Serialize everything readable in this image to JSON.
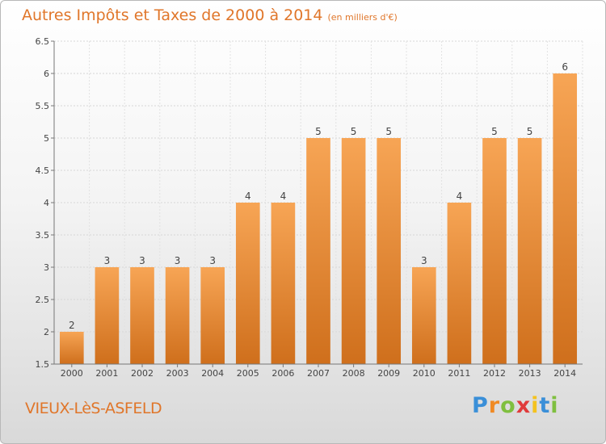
{
  "header": {
    "title": "Autres Impôts et Taxes de 2000 à 2014",
    "subtitle": "(en milliers d'€)"
  },
  "footer": {
    "commune": "VIEUX-LèS-ASFELD",
    "logo_letters": [
      "P",
      "r",
      "o",
      "x",
      "i",
      "t",
      "i"
    ],
    "logo_colors": [
      "#3a8fd8",
      "#f08a24",
      "#7fbf3f",
      "#e03b3b",
      "#f4c21f",
      "#3a8fd8",
      "#7fbf3f"
    ]
  },
  "colors": {
    "bar_light": "#f7a555",
    "bar_dark": "#cf6f1c",
    "text": "#e0762a"
  },
  "chart_data": {
    "type": "bar",
    "categories": [
      "2000",
      "2001",
      "2002",
      "2003",
      "2004",
      "2005",
      "2006",
      "2007",
      "2008",
      "2009",
      "2010",
      "2011",
      "2012",
      "2013",
      "2014"
    ],
    "values": [
      2,
      3,
      3,
      3,
      3,
      4,
      4,
      5,
      5,
      5,
      3,
      4,
      5,
      5,
      6
    ],
    "data_labels": [
      "2",
      "3",
      "3",
      "3",
      "3",
      "4",
      "4",
      "5",
      "5",
      "5",
      "3",
      "4",
      "5",
      "5",
      "6"
    ],
    "ylim": [
      1.5,
      6.5
    ],
    "yticks": [
      "1.5",
      "2",
      "2.5",
      "3",
      "3.5",
      "4",
      "4.5",
      "5",
      "5.5",
      "6",
      "6.5"
    ],
    "grid": true
  }
}
